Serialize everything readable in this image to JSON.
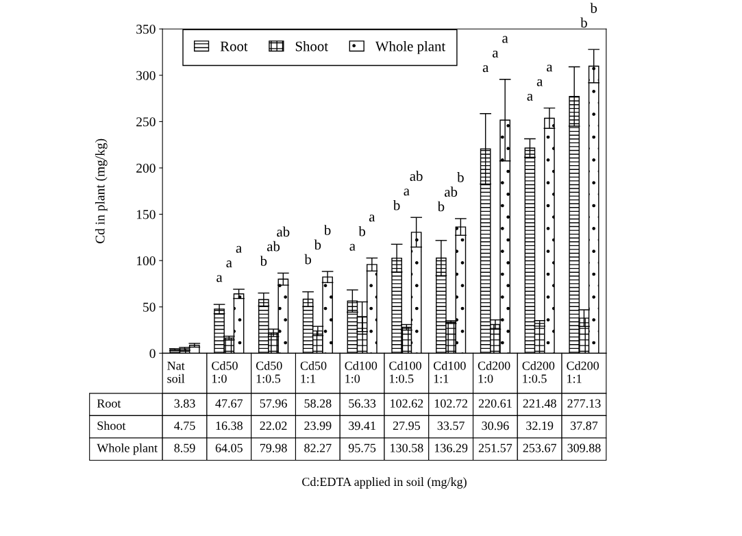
{
  "chart_data": {
    "type": "bar",
    "ylabel": "Cd in plant (mg/kg)",
    "categories": [
      "Nat\nsoil",
      "Cd50\n1:0",
      "Cd50\n1:0.5",
      "Cd50\n1:1",
      "Cd100\n1:0",
      "Cd100\n1:0.5",
      "Cd100\n1:1",
      "Cd200\n1:0",
      "Cd200\n1:0.5",
      "Cd200\n1:1"
    ],
    "series": [
      {
        "name": "Root",
        "color": "#000000",
        "values": [
          3.83,
          47.67,
          57.96,
          58.28,
          56.33,
          102.62,
          102.72,
          220.61,
          221.48,
          277.13
        ],
        "errors": [
          1,
          5,
          7,
          8,
          12,
          15,
          19,
          38,
          10,
          32
        ]
      },
      {
        "name": "Shoot",
        "color": "#000000",
        "values": [
          4.75,
          16.38,
          22.02,
          23.99,
          39.41,
          27.95,
          33.57,
          30.96,
          32.19,
          37.87
        ],
        "errors": [
          1.5,
          2,
          4,
          5,
          16,
          3,
          1.5,
          5,
          3,
          9
        ]
      },
      {
        "name": "Whole plant",
        "color": "#000000",
        "values": [
          8.59,
          64.05,
          79.98,
          82.27,
          95.75,
          130.58,
          136.29,
          251.57,
          253.67,
          309.88
        ],
        "errors": [
          2,
          5,
          6.5,
          6,
          7,
          16,
          9,
          44,
          11,
          18
        ]
      }
    ],
    "annotations": [
      "Cd:EDTA applied in soil (mg/kg)",
      "a",
      "a",
      "a",
      "b",
      "ab",
      "ab",
      "b",
      "b",
      "b",
      "a",
      "b",
      "a",
      "b",
      "a",
      "ab",
      "b",
      "ab",
      "b",
      "a",
      "a",
      "a",
      "a",
      "a",
      "a",
      "b",
      "b"
    ],
    "ylim": [
      0,
      350
    ],
    "yticks": [
      0,
      50,
      100,
      150,
      200,
      250,
      300,
      350
    ],
    "data_labels": true,
    "tick_labels": "y",
    "legend": "top left"
  }
}
